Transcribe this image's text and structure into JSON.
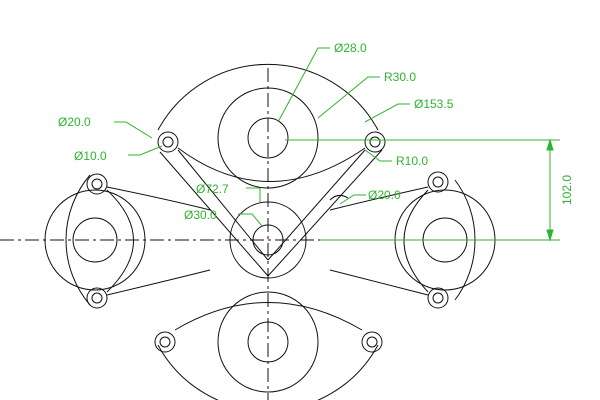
{
  "colors": {
    "geometry": "#111111",
    "dimension": "#2db52d",
    "background": "#ffffff"
  },
  "annotations": {
    "dia_28": "Ø28.0",
    "r_30": "R30.0",
    "dia_153": "Ø153.5",
    "dia_20_left": "Ø20.0",
    "dia_10": "Ø10.0",
    "r_10": "R10.0",
    "dia_72": "Ø72.7",
    "dia_20_right": "Ø20.0",
    "dia_30": "Ø30.0",
    "dim_102": "102.0"
  }
}
